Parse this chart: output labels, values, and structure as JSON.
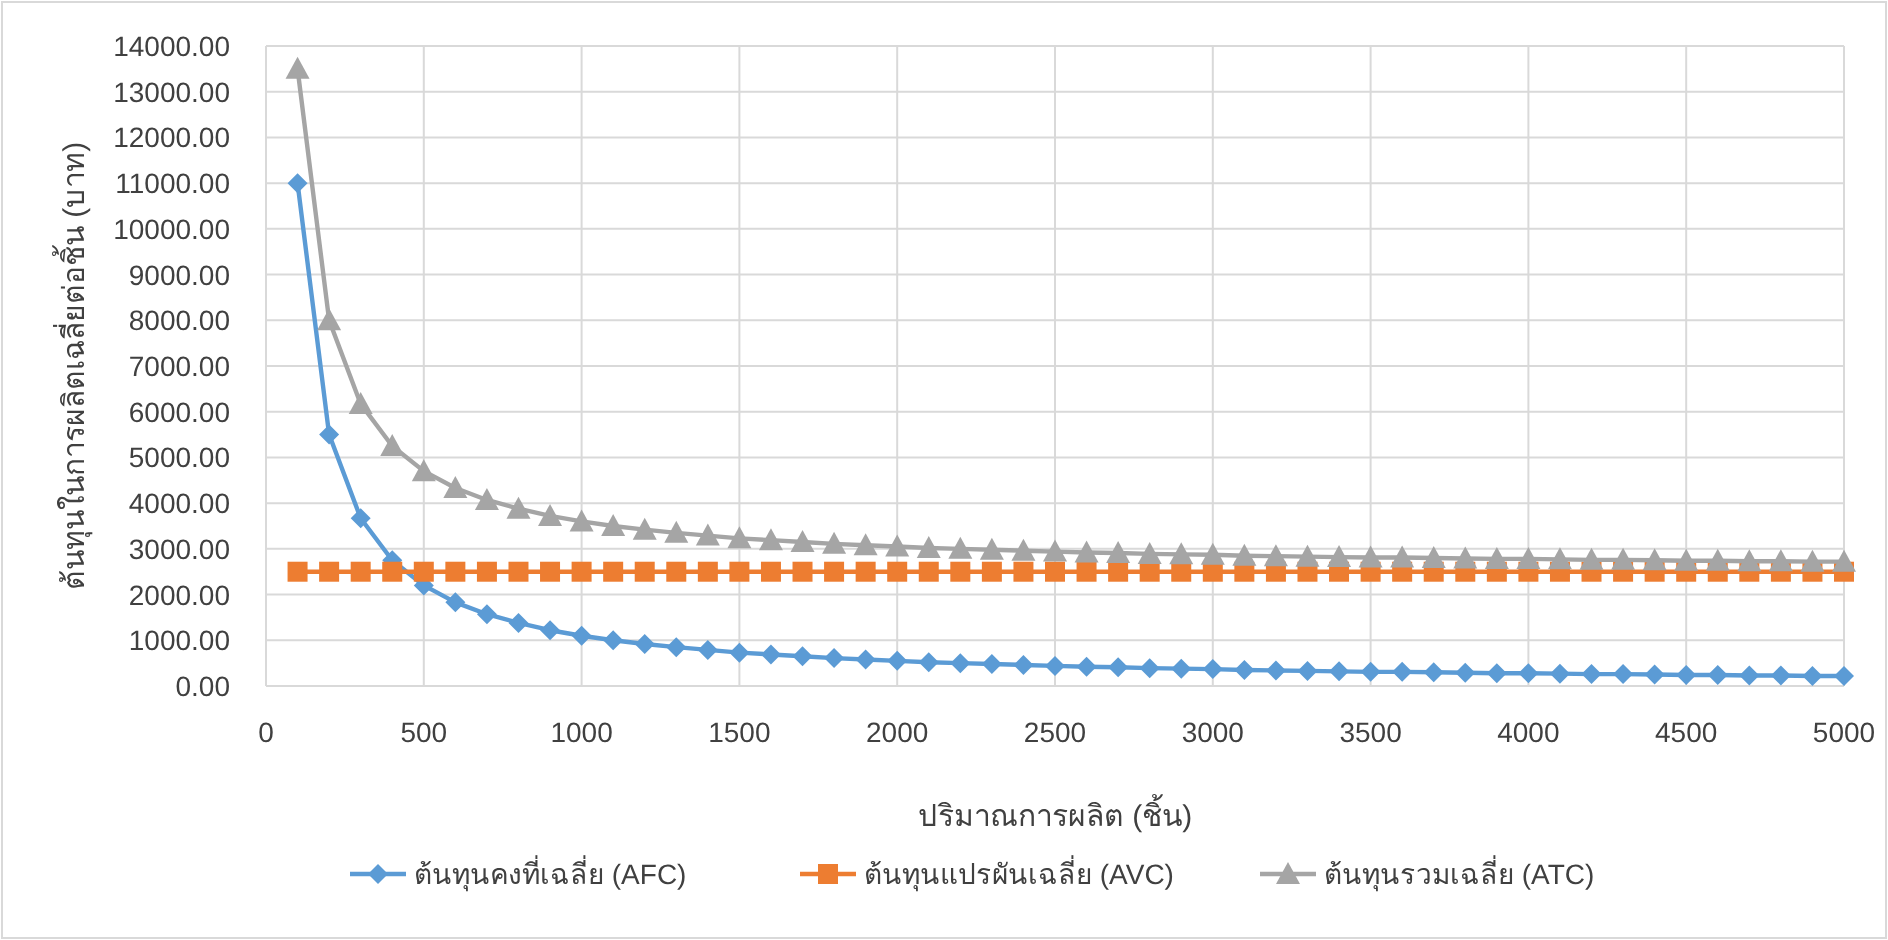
{
  "chart_data": {
    "type": "line",
    "xlabel": "ปริมาณการผลิต (ชิ้น)",
    "ylabel": "ต้นทุนในการผลิตเฉลี่ยต่อชิ้น (บาท)",
    "x": [
      100,
      200,
      300,
      400,
      500,
      600,
      700,
      800,
      900,
      1000,
      1100,
      1200,
      1300,
      1400,
      1500,
      1600,
      1700,
      1800,
      1900,
      2000,
      2100,
      2200,
      2300,
      2400,
      2500,
      2600,
      2700,
      2800,
      2900,
      3000,
      3100,
      3200,
      3300,
      3400,
      3500,
      3600,
      3700,
      3800,
      3900,
      4000,
      4100,
      4200,
      4300,
      4400,
      4500,
      4600,
      4700,
      4800,
      4900,
      5000
    ],
    "series": [
      {
        "name": "ต้นทุนคงที่เฉลี่ย (AFC)",
        "color": "#5b9bd5",
        "marker": "diamond",
        "values": [
          11000,
          5500,
          3670,
          2750,
          2200,
          1830,
          1570,
          1380,
          1220,
          1100,
          1000,
          920,
          850,
          790,
          730,
          690,
          650,
          610,
          580,
          550,
          520,
          500,
          480,
          460,
          440,
          420,
          410,
          390,
          380,
          370,
          350,
          340,
          330,
          320,
          310,
          310,
          300,
          290,
          280,
          280,
          270,
          260,
          260,
          250,
          240,
          240,
          230,
          230,
          220,
          220
        ]
      },
      {
        "name": "ต้นทุนแปรผันเฉลี่ย (AVC)",
        "color": "#ed7d31",
        "marker": "square",
        "values": [
          2500,
          2500,
          2500,
          2500,
          2500,
          2500,
          2500,
          2500,
          2500,
          2500,
          2500,
          2500,
          2500,
          2500,
          2500,
          2500,
          2500,
          2500,
          2500,
          2500,
          2500,
          2500,
          2500,
          2500,
          2500,
          2500,
          2500,
          2500,
          2500,
          2500,
          2500,
          2500,
          2500,
          2500,
          2500,
          2500,
          2500,
          2500,
          2500,
          2500,
          2500,
          2500,
          2500,
          2500,
          2500,
          2500,
          2500,
          2500,
          2500,
          2500
        ]
      },
      {
        "name": "ต้นทุนรวมเฉลี่ย (ATC)",
        "color": "#a5a5a5",
        "marker": "triangle",
        "values": [
          13500,
          8000,
          6170,
          5250,
          4700,
          4330,
          4070,
          3880,
          3720,
          3600,
          3500,
          3420,
          3350,
          3290,
          3230,
          3190,
          3150,
          3110,
          3080,
          3050,
          3020,
          3000,
          2980,
          2960,
          2940,
          2920,
          2910,
          2890,
          2880,
          2870,
          2850,
          2840,
          2830,
          2820,
          2810,
          2810,
          2800,
          2790,
          2780,
          2780,
          2770,
          2760,
          2760,
          2750,
          2740,
          2740,
          2730,
          2730,
          2720,
          2720
        ]
      }
    ],
    "xlim": [
      0,
      5000
    ],
    "xticks": [
      0,
      500,
      1000,
      1500,
      2000,
      2500,
      3000,
      3500,
      4000,
      4500,
      5000
    ],
    "ylim": [
      0,
      14000
    ],
    "yticks": [
      {
        "value": 0,
        "label": "0.00"
      },
      {
        "value": 1000,
        "label": "1000.00"
      },
      {
        "value": 2000,
        "label": "2000.00"
      },
      {
        "value": 3000,
        "label": "3000.00"
      },
      {
        "value": 4000,
        "label": "4000.00"
      },
      {
        "value": 5000,
        "label": "5000.00"
      },
      {
        "value": 6000,
        "label": "6000.00"
      },
      {
        "value": 7000,
        "label": "7000.00"
      },
      {
        "value": 8000,
        "label": "8000.00"
      },
      {
        "value": 9000,
        "label": "9000.00"
      },
      {
        "value": 10000,
        "label": "10000.00"
      },
      {
        "value": 11000,
        "label": "11000.00"
      },
      {
        "value": 12000,
        "label": "12000.00"
      },
      {
        "value": 13000,
        "label": "13000.00"
      },
      {
        "value": 14000,
        "label": "14000.00"
      }
    ],
    "grid": true,
    "legend": "bottom",
    "line_style": "solid"
  }
}
